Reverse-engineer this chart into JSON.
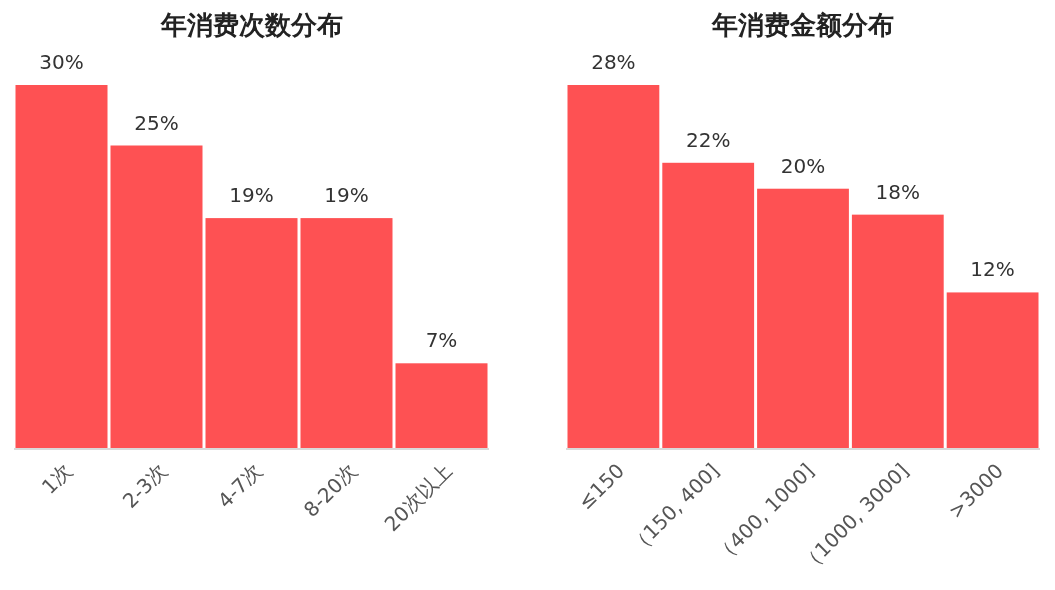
{
  "chart_data": [
    {
      "type": "bar",
      "title": "年消费次数分布",
      "categories": [
        "1次",
        "2-3次",
        "4-7次",
        "8-20次",
        "20次以上"
      ],
      "values": [
        30,
        25,
        19,
        19,
        7
      ],
      "color": "#fe5153",
      "data_labels": true,
      "value_labels": [
        "30%",
        "25%",
        "19%",
        "19%",
        "7%"
      ]
    },
    {
      "type": "bar",
      "title": "年消费金额分布",
      "categories": [
        "≤150",
        "（150, 400]",
        "（400, 1000]",
        "（1000, 3000]",
        ">3000"
      ],
      "values": [
        28,
        22,
        20,
        18,
        12
      ],
      "color": "#fe5153",
      "data_labels": true,
      "value_labels": [
        "28%",
        "22%",
        "20%",
        "18%",
        "12%"
      ]
    }
  ]
}
